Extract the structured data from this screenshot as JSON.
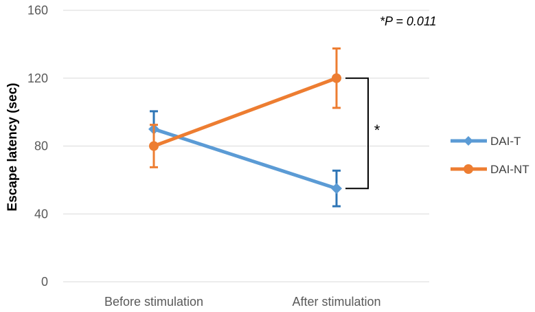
{
  "chart_data": {
    "type": "line",
    "title": "",
    "xlabel": "",
    "ylabel": "Escape latency (sec)",
    "ylim": [
      0,
      160
    ],
    "yticks": [
      0,
      40,
      80,
      120,
      160
    ],
    "categories": [
      "Before stimulation",
      "After stimulation"
    ],
    "grid": true,
    "legend_position": "right",
    "series": [
      {
        "name": "DAI-T",
        "marker": "diamond",
        "color": "#5B9BD5",
        "error_color": "#2E75B6",
        "values": [
          90,
          55
        ],
        "error": [
          10.5,
          10.5
        ]
      },
      {
        "name": "DAI-NT",
        "marker": "circle",
        "color": "#ED7D31",
        "error_color": "#ED7D31",
        "values": [
          80,
          120
        ],
        "error": [
          12.5,
          17.5
        ]
      }
    ],
    "annotations": {
      "p_value": "*P = 0.011",
      "significance_marker": "*"
    }
  }
}
